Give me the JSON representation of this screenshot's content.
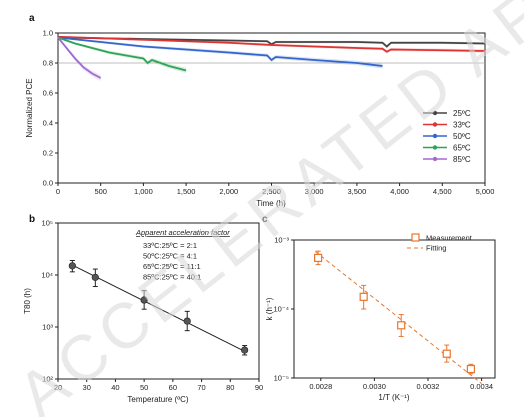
{
  "watermark_1": "ACCELERATED ARTICLE PREVIEW",
  "chart_data": [
    {
      "panel": "a",
      "type": "line",
      "xlabel": "Time (h)",
      "ylabel": "Normalized PCE",
      "xlim": [
        0,
        5000
      ],
      "ylim": [
        0,
        1.0
      ],
      "x_ticks": [
        "0",
        "500",
        "1,000",
        "1,500",
        "2,000",
        "2,500",
        "3,000",
        "3,500",
        "4,000",
        "4,500",
        "5,000"
      ],
      "y_ticks": [
        "0.0",
        "0.2",
        "0.4",
        "0.6",
        "0.8",
        "1.0"
      ],
      "reference_line_y": 0.8,
      "legend_position": "right",
      "series": [
        {
          "name": "25ºC",
          "color": "#444444",
          "x": [
            0,
            500,
            1000,
            1500,
            2000,
            2450,
            2500,
            2550,
            3000,
            3500,
            3800,
            3850,
            3900,
            4500,
            5000
          ],
          "y": [
            0.97,
            0.965,
            0.96,
            0.955,
            0.95,
            0.945,
            0.925,
            0.94,
            0.94,
            0.94,
            0.935,
            0.91,
            0.935,
            0.935,
            0.93
          ]
        },
        {
          "name": "33ºC",
          "color": "#dd3333",
          "x": [
            0,
            500,
            1000,
            1500,
            2000,
            2500,
            3000,
            3500,
            3800,
            3850,
            3900,
            4500,
            5000
          ],
          "y": [
            0.975,
            0.965,
            0.955,
            0.945,
            0.935,
            0.92,
            0.91,
            0.9,
            0.895,
            0.875,
            0.89,
            0.885,
            0.88
          ]
        },
        {
          "name": "50ºC",
          "color": "#3366cc",
          "x": [
            0,
            500,
            1000,
            1500,
            2000,
            2450,
            2500,
            2550,
            3000,
            3500,
            3800
          ],
          "y": [
            0.97,
            0.94,
            0.91,
            0.89,
            0.87,
            0.85,
            0.82,
            0.84,
            0.82,
            0.8,
            0.78
          ]
        },
        {
          "name": "65ºC",
          "color": "#2ea355",
          "x": [
            0,
            200,
            400,
            600,
            800,
            1000,
            1050,
            1100,
            1300,
            1500
          ],
          "y": [
            0.97,
            0.93,
            0.9,
            0.87,
            0.85,
            0.83,
            0.8,
            0.82,
            0.78,
            0.75
          ]
        },
        {
          "name": "85ºC",
          "color": "#a06ad0",
          "x": [
            0,
            100,
            200,
            300,
            400,
            500
          ],
          "y": [
            0.97,
            0.9,
            0.83,
            0.77,
            0.73,
            0.7
          ]
        }
      ]
    },
    {
      "panel": "b",
      "type": "scatter",
      "xlabel": "Temperature (ºC)",
      "ylabel": "T80 (h)",
      "xlim": [
        20,
        90
      ],
      "ylim_log10": [
        2,
        5
      ],
      "x_ticks": [
        "20",
        "30",
        "40",
        "50",
        "60",
        "70",
        "80",
        "90"
      ],
      "y_ticks": [
        "10²",
        "10³",
        "10⁴",
        "10⁵"
      ],
      "x": [
        25,
        33,
        50,
        65,
        85
      ],
      "y": [
        15000,
        9000,
        3300,
        1300,
        360
      ],
      "err_low": [
        11500,
        6000,
        2200,
        850,
        290
      ],
      "err_high": [
        19000,
        13000,
        5000,
        2000,
        440
      ],
      "fit": {
        "x": [
          25,
          85
        ],
        "y": [
          15500,
          340
        ]
      },
      "annotation_title": "Apparent acceleration factor",
      "annotations": [
        "33ºC:25ºC =   2:1",
        "50ºC:25ºC =   4:1",
        "65ºC:25ºC = 11:1",
        "85ºC:25ºC = 40:1"
      ]
    },
    {
      "panel": "c",
      "type": "scatter",
      "xlabel": "1/T (K⁻¹)",
      "ylabel": "k (h⁻¹)",
      "xlim": [
        0.0027,
        0.00345
      ],
      "ylim_log10": [
        -5,
        -3
      ],
      "x_ticks": [
        "0.0028",
        "0.0030",
        "0.0032",
        "0.0034"
      ],
      "y_ticks": [
        "10⁻⁵",
        "10⁻⁴",
        "10⁻³"
      ],
      "x": [
        0.00279,
        0.00296,
        0.0031,
        0.00327,
        0.00336
      ],
      "y": [
        0.00055,
        0.00015,
        5.8e-05,
        2.25e-05,
        1.35e-05
      ],
      "err_low": [
        0.00044,
        0.0001,
        4e-05,
        1.7e-05,
        1.15e-05
      ],
      "err_high": [
        0.00069,
        0.00022,
        8.3e-05,
        3e-05,
        1.58e-05
      ],
      "fit": {
        "x": [
          0.00278,
          0.0034
        ],
        "y": [
          0.00068,
          8.3e-06
        ]
      },
      "color": "#e8762c",
      "legend": [
        "Measurement",
        "Fitting"
      ],
      "legend_position": "top-right"
    }
  ]
}
